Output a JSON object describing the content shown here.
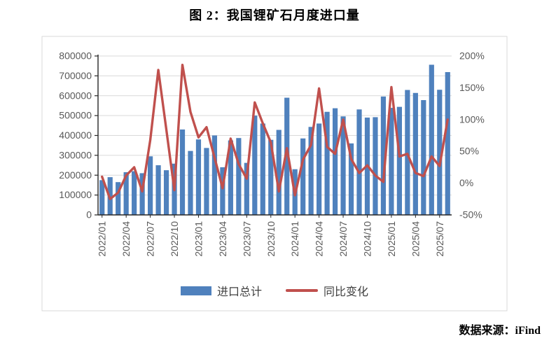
{
  "title": "图 2：我国锂矿石月度进口量",
  "source": "数据来源：iFind",
  "legend": {
    "bars_label": "进口总计",
    "line_label": "同比变化"
  },
  "colors": {
    "bar": "#4F81BD",
    "line": "#C0504D",
    "grid": "#D9D9D9",
    "axis_text": "#595959",
    "axis_line": "#262626",
    "chart_border": "#D9D9D9"
  },
  "chart_data": {
    "type": "bar+line",
    "title": "图 2：我国锂矿石月度进口量",
    "grid": true,
    "legend_position": "bottom",
    "categories": [
      "2022/01",
      "2022/02",
      "2022/03",
      "2022/04",
      "2022/05",
      "2022/06",
      "2022/07",
      "2022/08",
      "2022/09",
      "2022/10",
      "2022/11",
      "2022/12",
      "2023/01",
      "2023/02",
      "2023/03",
      "2023/04",
      "2023/05",
      "2023/06",
      "2023/07",
      "2023/08",
      "2023/09",
      "2023/10",
      "2023/11",
      "2023/12",
      "2024/01",
      "2024/02",
      "2024/03",
      "2024/04",
      "2024/05",
      "2024/06",
      "2024/07",
      "2024/08",
      "2024/09",
      "2024/10",
      "2024/11",
      "2024/12",
      "2025/01",
      "2025/02",
      "2025/03",
      "2025/04",
      "2025/05",
      "2025/06",
      "2025/07",
      "2025/08"
    ],
    "x_label_every": 3,
    "series": [
      {
        "name": "进口总计",
        "type": "bar",
        "axis": "left",
        "values": [
          175000,
          190000,
          165000,
          215000,
          220000,
          210000,
          295000,
          250000,
          225000,
          258000,
          430000,
          322000,
          380000,
          337000,
          400000,
          240000,
          375000,
          387000,
          262000,
          500000,
          460000,
          378000,
          428000,
          590000,
          230000,
          385000,
          443000,
          460000,
          519000,
          537000,
          496000,
          360000,
          531000,
          490000,
          492000,
          596000,
          539000,
          544000,
          629000,
          614000,
          578000,
          756000,
          630000,
          719000
        ]
      },
      {
        "name": "同比变化",
        "type": "line",
        "axis": "right",
        "values": [
          10,
          -25,
          -15,
          12,
          25,
          -13,
          68,
          178,
          84,
          -11,
          186,
          112,
          72,
          88,
          40,
          -8,
          70,
          30,
          7,
          127,
          94,
          64,
          -13,
          55,
          -19,
          37,
          60,
          149,
          57,
          46,
          100,
          38,
          16,
          28,
          12,
          2,
          151,
          42,
          46,
          16,
          11,
          42,
          27,
          100
        ]
      }
    ],
    "left_axis": {
      "min": 0,
      "max": 800000,
      "step": 100000,
      "tick_labels": [
        "0",
        "100000",
        "200000",
        "300000",
        "400000",
        "500000",
        "600000",
        "700000",
        "800000"
      ]
    },
    "right_axis": {
      "min": -50,
      "max": 200,
      "step": 50,
      "tick_labels": [
        "-50%",
        "0%",
        "50%",
        "100%",
        "150%",
        "200%"
      ]
    }
  }
}
